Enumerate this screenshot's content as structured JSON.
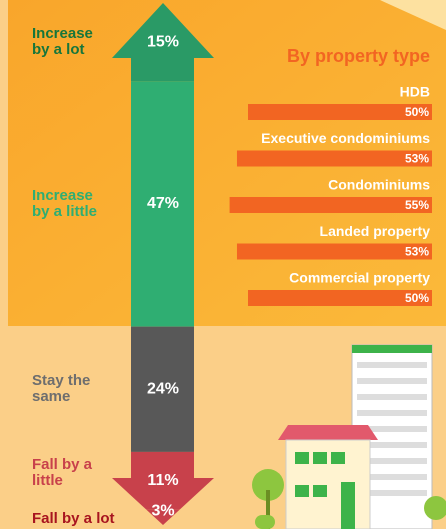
{
  "chart_data": [
    {
      "type": "arrow-stack",
      "categories": [
        "Increase by a lot",
        "Increase by a little",
        "Stay the same",
        "Fall by a little",
        "Fall by a lot"
      ],
      "values": [
        15,
        47,
        24,
        11,
        3
      ],
      "value_labels": [
        "15%",
        "47%",
        "24%",
        "11%",
        "3%"
      ],
      "colors": [
        "#2a9a66",
        "#2fae72",
        "#585858",
        "#c8414b",
        "#c8414b"
      ],
      "label_colors": [
        "#17763b",
        "#2fae72",
        "#6e6e6e",
        "#c8414b",
        "#a8151f"
      ]
    },
    {
      "type": "hbar",
      "title": "By property type",
      "categories": [
        "HDB",
        "Executive condominiums",
        "Condominiums",
        "Landed property",
        "Commercial property"
      ],
      "values": [
        50,
        53,
        55,
        53,
        50
      ],
      "value_labels": [
        "50%",
        "53%",
        "55%",
        "53%",
        "50%"
      ],
      "color": "#f26522"
    }
  ]
}
